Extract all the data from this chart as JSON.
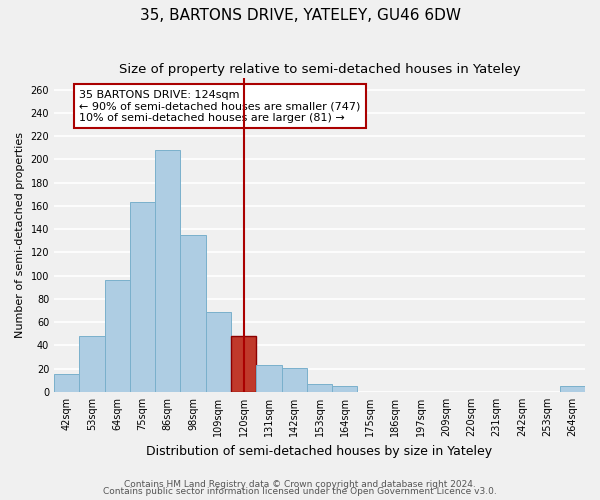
{
  "title": "35, BARTONS DRIVE, YATELEY, GU46 6DW",
  "subtitle": "Size of property relative to semi-detached houses in Yateley",
  "xlabel": "Distribution of semi-detached houses by size in Yateley",
  "ylabel": "Number of semi-detached properties",
  "footer_line1": "Contains HM Land Registry data © Crown copyright and database right 2024.",
  "footer_line2": "Contains public sector information licensed under the Open Government Licence v3.0.",
  "bar_labels": [
    "42sqm",
    "53sqm",
    "64sqm",
    "75sqm",
    "86sqm",
    "98sqm",
    "109sqm",
    "120sqm",
    "131sqm",
    "142sqm",
    "153sqm",
    "164sqm",
    "175sqm",
    "186sqm",
    "197sqm",
    "209sqm",
    "220sqm",
    "231sqm",
    "242sqm",
    "253sqm",
    "264sqm"
  ],
  "bar_values": [
    15,
    48,
    96,
    163,
    208,
    135,
    69,
    48,
    23,
    21,
    7,
    5,
    0,
    0,
    0,
    0,
    0,
    0,
    0,
    0,
    5
  ],
  "highlight_bar_index": 7,
  "bar_color_normal": "#aecde3",
  "bar_color_highlight": "#c0392b",
  "bar_edge_color": "#7ab0cc",
  "bar_highlight_edge_color": "#8b0000",
  "vline_color": "#aa0000",
  "annotation_title": "35 BARTONS DRIVE: 124sqm",
  "annotation_line1": "← 90% of semi-detached houses are smaller (747)",
  "annotation_line2": "10% of semi-detached houses are larger (81) →",
  "annotation_box_color": "#ffffff",
  "annotation_box_edge": "#aa0000",
  "ylim": [
    0,
    270
  ],
  "yticks": [
    0,
    20,
    40,
    60,
    80,
    100,
    120,
    140,
    160,
    180,
    200,
    220,
    240,
    260
  ],
  "background_color": "#f0f0f0",
  "plot_bg_color": "#f0f0f0",
  "grid_color": "#ffffff",
  "title_fontsize": 11,
  "subtitle_fontsize": 9.5,
  "ylabel_fontsize": 8,
  "xlabel_fontsize": 9,
  "tick_fontsize": 7,
  "annotation_fontsize": 8,
  "footer_fontsize": 6.5
}
